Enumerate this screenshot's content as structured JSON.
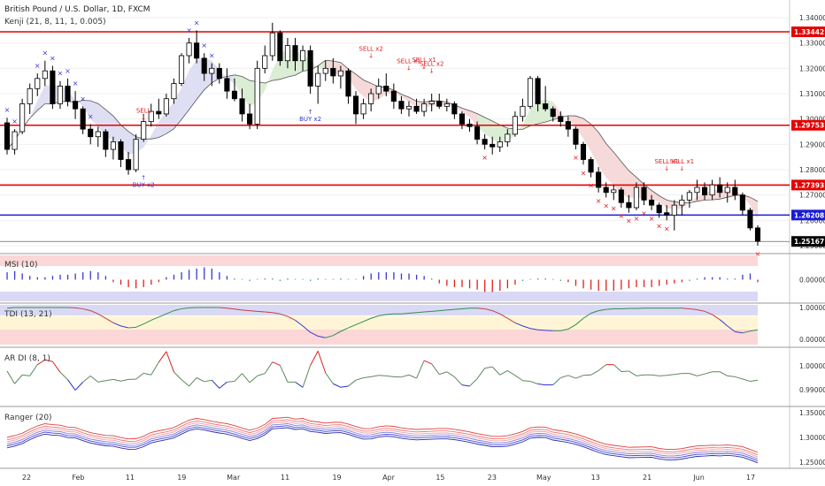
{
  "header": {
    "symbol_title": "British Pound / U.S. Dollar, 1D, FXCM",
    "indicator_label": "Kenji (21, 8, 11, 1, 0.005)"
  },
  "colors": {
    "bull": "#ffffff",
    "bear": "#000000",
    "cloud_green": "#d7ecd0",
    "cloud_red": "#f5d5d5",
    "cloud_blue": "#dcdcf2",
    "red_line": "#e60000",
    "blue_line": "#1a1adb",
    "signal_red": "#e02020",
    "signal_blue": "#3a3ad0"
  },
  "x_axis": {
    "labels": [
      "22",
      "Feb",
      "11",
      "19",
      "Mar",
      "11",
      "19",
      "Apr",
      "15",
      "23",
      "May",
      "13",
      "21",
      "Jun",
      "17"
    ]
  },
  "chart_data": [
    {
      "type": "candlestick",
      "panel": "price",
      "yaxis": {
        "ticks": [
          "1.34000",
          "1.33000",
          "1.32000",
          "1.31000",
          "1.30000",
          "1.29000",
          "1.28000",
          "1.27000",
          "1.26000",
          "1.25000"
        ],
        "price_tags": [
          {
            "label": "1.33442",
            "color": "red"
          },
          {
            "label": "1.29753",
            "color": "red"
          },
          {
            "label": "1.27393",
            "color": "red"
          },
          {
            "label": "1.26208",
            "color": "blue"
          },
          {
            "label": "1.25167",
            "color": "black"
          }
        ]
      },
      "horizontal_lines": [
        {
          "value": 1.33442,
          "color": "red"
        },
        {
          "value": 1.29753,
          "color": "red"
        },
        {
          "value": 1.27393,
          "color": "red"
        },
        {
          "value": 1.26208,
          "color": "blue"
        },
        {
          "value": 1.25167,
          "color": "black"
        }
      ],
      "candles": [
        [
          1.2985,
          1.3005,
          1.286,
          1.288
        ],
        [
          1.288,
          1.296,
          1.286,
          1.295
        ],
        [
          1.295,
          1.308,
          1.294,
          1.306
        ],
        [
          1.306,
          1.314,
          1.302,
          1.312
        ],
        [
          1.312,
          1.318,
          1.309,
          1.316
        ],
        [
          1.316,
          1.323,
          1.313,
          1.319
        ],
        [
          1.319,
          1.321,
          1.304,
          1.306
        ],
        [
          1.306,
          1.315,
          1.304,
          1.313
        ],
        [
          1.313,
          1.316,
          1.305,
          1.307
        ],
        [
          1.307,
          1.311,
          1.3,
          1.304
        ],
        [
          1.304,
          1.305,
          1.294,
          1.296
        ],
        [
          1.296,
          1.298,
          1.29,
          1.293
        ],
        [
          1.293,
          1.297,
          1.289,
          1.295
        ],
        [
          1.295,
          1.296,
          1.285,
          1.288
        ],
        [
          1.288,
          1.293,
          1.284,
          1.291
        ],
        [
          1.291,
          1.292,
          1.281,
          1.284
        ],
        [
          1.284,
          1.287,
          1.278,
          1.28
        ],
        [
          1.28,
          1.294,
          1.279,
          1.292
        ],
        [
          1.292,
          1.302,
          1.291,
          1.299
        ],
        [
          1.299,
          1.306,
          1.297,
          1.303
        ],
        [
          1.303,
          1.308,
          1.3,
          1.302
        ],
        [
          1.302,
          1.31,
          1.301,
          1.308
        ],
        [
          1.308,
          1.316,
          1.306,
          1.314
        ],
        [
          1.314,
          1.326,
          1.313,
          1.325
        ],
        [
          1.325,
          1.332,
          1.322,
          1.33
        ],
        [
          1.33,
          1.335,
          1.322,
          1.324
        ],
        [
          1.324,
          1.326,
          1.315,
          1.318
        ],
        [
          1.318,
          1.322,
          1.313,
          1.32
        ],
        [
          1.32,
          1.322,
          1.314,
          1.316
        ],
        [
          1.316,
          1.32,
          1.308,
          1.311
        ],
        [
          1.311,
          1.316,
          1.307,
          1.308
        ],
        [
          1.308,
          1.312,
          1.299,
          1.302
        ],
        [
          1.302,
          1.306,
          1.296,
          1.298
        ],
        [
          1.298,
          1.323,
          1.296,
          1.32
        ],
        [
          1.32,
          1.329,
          1.318,
          1.325
        ],
        [
          1.325,
          1.338,
          1.323,
          1.334
        ],
        [
          1.334,
          1.335,
          1.321,
          1.323
        ],
        [
          1.323,
          1.332,
          1.32,
          1.329
        ],
        [
          1.329,
          1.332,
          1.319,
          1.323
        ],
        [
          1.323,
          1.329,
          1.319,
          1.327
        ],
        [
          1.327,
          1.329,
          1.31,
          1.313
        ],
        [
          1.313,
          1.321,
          1.306,
          1.318
        ],
        [
          1.318,
          1.323,
          1.315,
          1.32
        ],
        [
          1.32,
          1.324,
          1.314,
          1.317
        ],
        [
          1.317,
          1.321,
          1.312,
          1.319
        ],
        [
          1.319,
          1.32,
          1.306,
          1.309
        ],
        [
          1.309,
          1.311,
          1.298,
          1.302
        ],
        [
          1.302,
          1.308,
          1.3,
          1.306
        ],
        [
          1.306,
          1.312,
          1.303,
          1.31
        ],
        [
          1.31,
          1.316,
          1.308,
          1.313
        ],
        [
          1.313,
          1.318,
          1.309,
          1.311
        ],
        [
          1.311,
          1.314,
          1.304,
          1.307
        ],
        [
          1.307,
          1.309,
          1.302,
          1.304
        ],
        [
          1.304,
          1.307,
          1.301,
          1.305
        ],
        [
          1.305,
          1.308,
          1.302,
          1.303
        ],
        [
          1.303,
          1.308,
          1.301,
          1.306
        ],
        [
          1.306,
          1.31,
          1.303,
          1.307
        ],
        [
          1.307,
          1.31,
          1.304,
          1.305
        ],
        [
          1.305,
          1.308,
          1.303,
          1.306
        ],
        [
          1.306,
          1.307,
          1.3,
          1.302
        ],
        [
          1.302,
          1.303,
          1.296,
          1.298
        ],
        [
          1.298,
          1.3,
          1.295,
          1.297
        ],
        [
          1.297,
          1.299,
          1.29,
          1.292
        ],
        [
          1.292,
          1.294,
          1.288,
          1.29
        ],
        [
          1.29,
          1.293,
          1.286,
          1.289
        ],
        [
          1.289,
          1.293,
          1.287,
          1.291
        ],
        [
          1.291,
          1.296,
          1.289,
          1.294
        ],
        [
          1.294,
          1.303,
          1.293,
          1.301
        ],
        [
          1.301,
          1.308,
          1.299,
          1.305
        ],
        [
          1.305,
          1.317,
          1.304,
          1.316
        ],
        [
          1.316,
          1.317,
          1.303,
          1.306
        ],
        [
          1.306,
          1.313,
          1.303,
          1.304
        ],
        [
          1.304,
          1.305,
          1.299,
          1.301
        ],
        [
          1.301,
          1.303,
          1.297,
          1.299
        ],
        [
          1.299,
          1.301,
          1.293,
          1.296
        ],
        [
          1.296,
          1.297,
          1.288,
          1.29
        ],
        [
          1.29,
          1.291,
          1.282,
          1.284
        ],
        [
          1.284,
          1.285,
          1.277,
          1.279
        ],
        [
          1.279,
          1.281,
          1.271,
          1.273
        ],
        [
          1.273,
          1.275,
          1.269,
          1.271
        ],
        [
          1.271,
          1.274,
          1.268,
          1.272
        ],
        [
          1.272,
          1.273,
          1.265,
          1.267
        ],
        [
          1.267,
          1.27,
          1.263,
          1.265
        ],
        [
          1.265,
          1.275,
          1.264,
          1.273
        ],
        [
          1.273,
          1.275,
          1.266,
          1.268
        ],
        [
          1.268,
          1.27,
          1.264,
          1.266
        ],
        [
          1.266,
          1.267,
          1.261,
          1.263
        ],
        [
          1.263,
          1.266,
          1.26,
          1.262
        ],
        [
          1.262,
          1.268,
          1.256,
          1.266
        ],
        [
          1.266,
          1.27,
          1.262,
          1.268
        ],
        [
          1.268,
          1.272,
          1.265,
          1.271
        ],
        [
          1.271,
          1.276,
          1.268,
          1.273
        ],
        [
          1.273,
          1.275,
          1.268,
          1.27
        ],
        [
          1.27,
          1.276,
          1.268,
          1.274
        ],
        [
          1.274,
          1.277,
          1.269,
          1.271
        ],
        [
          1.271,
          1.275,
          1.267,
          1.273
        ],
        [
          1.273,
          1.276,
          1.268,
          1.27
        ],
        [
          1.27,
          1.271,
          1.262,
          1.264
        ],
        [
          1.264,
          1.265,
          1.256,
          1.257
        ],
        [
          1.257,
          1.258,
          1.25,
          1.2517
        ]
      ],
      "cloud_segments": [
        {
          "start": 0,
          "end": 17,
          "color": "blue"
        },
        {
          "start": 17,
          "end": 30,
          "color": "blue"
        },
        {
          "start": 30,
          "end": 42,
          "color": "green"
        },
        {
          "start": 42,
          "end": 62,
          "color": "red"
        },
        {
          "start": 62,
          "end": 72,
          "color": "green"
        },
        {
          "start": 72,
          "end": 100,
          "color": "red"
        }
      ],
      "annotations": [
        {
          "text": "SELL",
          "index": 18,
          "value": 1.299,
          "color": "red",
          "side": "above"
        },
        {
          "text": "BUY x2",
          "index": 18,
          "value": 1.278,
          "color": "blue",
          "side": "below"
        },
        {
          "text": "BUY x2",
          "index": 40,
          "value": 1.304,
          "color": "blue",
          "side": "below"
        },
        {
          "text": "SELL x2",
          "index": 48,
          "value": 1.3235,
          "color": "red",
          "side": "above"
        },
        {
          "text": "SELL x1",
          "index": 53,
          "value": 1.3185,
          "color": "red",
          "side": "above"
        },
        {
          "text": "SELL x1",
          "index": 55,
          "value": 1.319,
          "color": "red",
          "side": "above"
        },
        {
          "text": "SELL x2",
          "index": 56,
          "value": 1.3175,
          "color": "red",
          "side": "above"
        },
        {
          "text": "SELL x1",
          "index": 87,
          "value": 1.279,
          "color": "red",
          "side": "above"
        },
        {
          "text": "SELL x1",
          "index": 89,
          "value": 1.279,
          "color": "red",
          "side": "above"
        }
      ],
      "x_markers_blue": [
        0,
        1,
        4,
        5,
        6,
        7,
        8,
        9,
        10,
        11,
        24,
        25,
        26,
        27
      ],
      "x_markers_red": [
        63,
        75,
        76,
        77,
        78,
        79,
        80,
        81,
        82,
        83,
        84,
        85,
        86,
        87,
        99
      ]
    },
    {
      "type": "bar",
      "panel": "msi",
      "title": "MSI (10)",
      "yaxis": {
        "ticks": [
          "0.00000"
        ]
      },
      "values": [
        0.6,
        0.7,
        0.5,
        0.3,
        0.2,
        0.2,
        0.3,
        0.4,
        0.4,
        0.5,
        0.6,
        0.7,
        0.6,
        0.3,
        -0.2,
        -0.4,
        -0.6,
        -0.7,
        -0.6,
        -0.4,
        -0.2,
        0.2,
        0.4,
        0.6,
        0.8,
        0.9,
        1.0,
        0.9,
        0.6,
        0.3,
        0.1,
        0.0,
        -0.1,
        0.0,
        0.1,
        0.1,
        -0.1,
        0.1,
        0.0,
        0.0,
        -0.1,
        0.1,
        0.0,
        0.0,
        0.1,
        0.0,
        0.0,
        0.3,
        0.5,
        0.6,
        0.6,
        0.6,
        0.5,
        0.5,
        0.4,
        0.3,
        0.1,
        -0.3,
        -0.5,
        -0.6,
        -0.6,
        -0.7,
        -0.8,
        -1.0,
        -1.0,
        -0.9,
        -0.7,
        -0.4,
        -0.1,
        0.0,
        0.1,
        0.1,
        0.0,
        -0.1,
        -0.2,
        -0.5,
        -0.7,
        -0.8,
        -0.9,
        -0.9,
        -0.9,
        -0.8,
        -0.7,
        -0.6,
        -0.6,
        -0.6,
        -0.5,
        -0.4,
        -0.3,
        -0.2,
        -0.1,
        0.1,
        0.2,
        0.2,
        0.2,
        0.1,
        0.1,
        0.4,
        0.5,
        -0.2
      ]
    },
    {
      "type": "line",
      "panel": "tdi",
      "title": "TDI (13, 21)",
      "yaxis": {
        "ticks": [
          "1.00000",
          "0.00000"
        ]
      },
      "values": [
        0.98,
        1.0,
        1.0,
        1.0,
        1.0,
        1.0,
        1.0,
        1.0,
        1.0,
        0.99,
        0.96,
        0.9,
        0.8,
        0.66,
        0.52,
        0.42,
        0.36,
        0.38,
        0.48,
        0.6,
        0.7,
        0.8,
        0.9,
        0.96,
        0.99,
        1.0,
        1.0,
        1.0,
        1.0,
        0.98,
        0.95,
        0.92,
        0.9,
        0.88,
        0.86,
        0.84,
        0.8,
        0.72,
        0.6,
        0.42,
        0.22,
        0.1,
        0.05,
        0.12,
        0.25,
        0.36,
        0.46,
        0.56,
        0.66,
        0.74,
        0.78,
        0.8,
        0.8,
        0.82,
        0.84,
        0.86,
        0.88,
        0.9,
        0.92,
        0.94,
        0.96,
        0.98,
        0.98,
        0.96,
        0.9,
        0.8,
        0.66,
        0.52,
        0.42,
        0.34,
        0.3,
        0.28,
        0.27,
        0.27,
        0.32,
        0.46,
        0.66,
        0.82,
        0.9,
        0.94,
        0.96,
        0.96,
        0.97,
        0.97,
        0.98,
        0.98,
        0.98,
        0.98,
        0.98,
        0.98,
        0.96,
        0.93,
        0.88,
        0.78,
        0.62,
        0.42,
        0.24,
        0.2,
        0.26,
        0.3
      ]
    },
    {
      "type": "line",
      "panel": "ardi",
      "title": "AR DI (8, 1)",
      "yaxis": {
        "ticks": [
          "1.00000",
          "0.99000"
        ]
      },
      "values": [
        0.9978,
        0.9925,
        0.9962,
        0.9958,
        1.0005,
        1.0025,
        1.0018,
        0.9973,
        0.9942,
        0.9898,
        0.9932,
        0.9958,
        0.9932,
        0.9938,
        0.9943,
        0.9936,
        0.9943,
        0.9944,
        0.9969,
        0.9962,
        1.0015,
        1.006,
        0.9974,
        0.9942,
        0.9915,
        0.995,
        0.9934,
        0.994,
        0.9906,
        0.9932,
        0.9935,
        0.9968,
        0.993,
        0.9958,
        0.9968,
        1.0016,
        1.0002,
        0.9932,
        0.9932,
        0.991,
        1.0002,
        1.0062,
        0.997,
        0.9925,
        0.991,
        0.9915,
        0.994,
        0.995,
        0.9954,
        0.996,
        0.9958,
        0.9954,
        0.9953,
        0.9962,
        0.9948,
        1.0022,
        1.0008,
        0.9964,
        0.9975,
        0.9954,
        0.992,
        0.9915,
        0.9946,
        0.999,
        0.9996,
        0.9962,
        0.998,
        0.996,
        0.9938,
        0.9935,
        0.9924,
        0.992,
        0.992,
        0.995,
        0.996,
        0.9948,
        0.996,
        0.9962,
        0.998,
        1.0005,
        1.0005,
        0.9976,
        0.9978,
        0.9958,
        0.9962,
        0.9962,
        0.9958,
        0.996,
        0.9964,
        0.9968,
        0.9968,
        0.9958,
        0.9966,
        0.9975,
        0.9975,
        0.9958,
        0.9954,
        0.9945,
        0.9935,
        0.994
      ]
    },
    {
      "type": "line",
      "panel": "ranger",
      "title": "Ranger (20)",
      "yaxis": {
        "ticks": [
          "1.35000",
          "1.30000",
          "1.25000"
        ]
      },
      "series_count": 6
    }
  ]
}
